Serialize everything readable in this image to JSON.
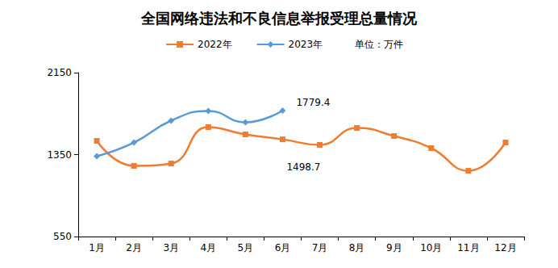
{
  "chart_data": {
    "type": "line",
    "title": "全国网络违法和不良信息举报受理总量情况",
    "unit_label": "单位：万件",
    "categories": [
      "1月",
      "2月",
      "3月",
      "4月",
      "5月",
      "6月",
      "7月",
      "8月",
      "9月",
      "10月",
      "11月",
      "12月"
    ],
    "series": [
      {
        "name": "2022年",
        "color": "#ED7D31",
        "marker": "square",
        "values": [
          1484,
          1240,
          1263,
          1618,
          1547,
          1498.7,
          1445,
          1610,
          1531,
          1413,
          1192,
          1468
        ]
      },
      {
        "name": "2023年",
        "color": "#5B9BD5",
        "marker": "diamond",
        "values": [
          1334,
          1468,
          1681,
          1776,
          1665,
          1779.4,
          null,
          null,
          null,
          null,
          null,
          null
        ]
      }
    ],
    "annotations": [
      {
        "series": "2023年",
        "category": "6月",
        "value": 1779.4,
        "text": "1779.4"
      },
      {
        "series": "2022年",
        "category": "6月",
        "value": 1498.7,
        "text": "1498.7"
      }
    ],
    "ylim": [
      550,
      2150
    ],
    "yticks": [
      550,
      1350,
      2150
    ],
    "grid": false,
    "legend": "top"
  }
}
